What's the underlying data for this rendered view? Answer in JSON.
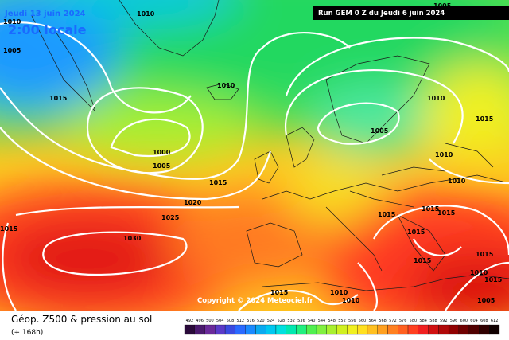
{
  "header": {
    "date": "Jeudi 13 juin 2024",
    "time": "2:00 locale",
    "run": "Run GEM 0 Z du Jeudi 6 juin 2024"
  },
  "copyright": "Copyright © 2024 Meteociel.fr",
  "footer": {
    "title": "Géop. Z500 & pression au sol",
    "lead": "(+ 168h)"
  },
  "isobars": [
    "1010",
    "1010",
    "1005",
    "1005",
    "1015",
    "1010",
    "1000",
    "1005",
    "1010",
    "1005",
    "1015",
    "1015",
    "1020",
    "1025",
    "1030",
    "1015",
    "1010",
    "1010",
    "1015",
    "1015",
    "1015",
    "1015",
    "1010",
    "1015",
    "1010",
    "1010",
    "1015",
    "1015",
    "1005",
    "1015"
  ],
  "colorbar": {
    "labels": [
      "492",
      "496",
      "500",
      "504",
      "508",
      "512",
      "516",
      "520",
      "524",
      "528",
      "532",
      "536",
      "540",
      "544",
      "548",
      "552",
      "556",
      "560",
      "564",
      "568",
      "572",
      "576",
      "580",
      "584",
      "588",
      "592",
      "596",
      "600",
      "604",
      "608",
      "612"
    ],
    "colors": [
      "#2a0a3a",
      "#4b1a6e",
      "#6a2a9a",
      "#5a3ac8",
      "#3a4ae0",
      "#2a6aff",
      "#1a8aff",
      "#0aaaf0",
      "#00c8f0",
      "#00e0e0",
      "#00e8b0",
      "#20f080",
      "#50f050",
      "#80f040",
      "#a8f030",
      "#d0f020",
      "#f0f020",
      "#ffe020",
      "#ffc020",
      "#ffa020",
      "#ff8020",
      "#ff6020",
      "#ff4020",
      "#f02020",
      "#d01010",
      "#b00808",
      "#900000",
      "#700000",
      "#500000",
      "#300000",
      "#100000"
    ]
  }
}
